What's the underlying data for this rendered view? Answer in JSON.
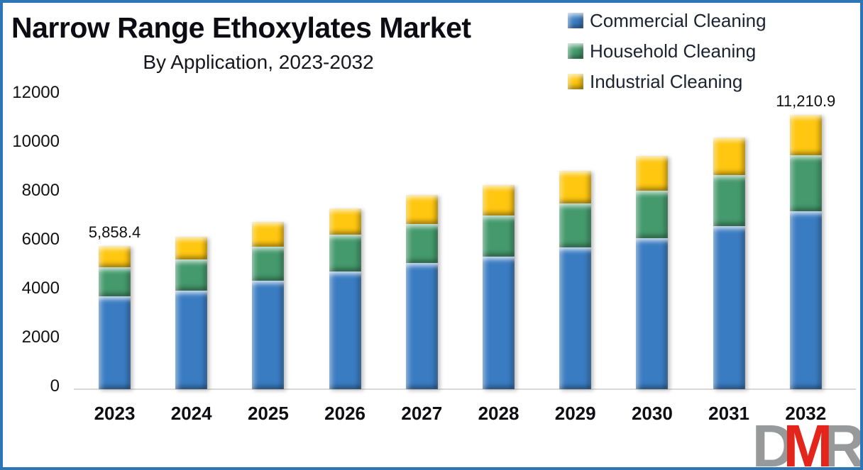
{
  "frame": {
    "border_color": "#2e75b6",
    "background": "#ffffff"
  },
  "header": {
    "title": "Narrow Range Ethoxylates Market",
    "subtitle": "By Application, 2023-2032"
  },
  "legend": {
    "position": "top-right",
    "items": [
      {
        "label": "Commercial Cleaning",
        "color": "#3a7cc2"
      },
      {
        "label": "Household Cleaning",
        "color": "#449a6c"
      },
      {
        "label": "Industrial Cleaning",
        "color": "#ffc710"
      }
    ]
  },
  "chart_data": {
    "type": "bar",
    "stacked": true,
    "title": "Narrow Range Ethoxylates Market",
    "subtitle": "By Application, 2023-2032",
    "categories": [
      "2023",
      "2024",
      "2025",
      "2026",
      "2027",
      "2028",
      "2029",
      "2030",
      "2031",
      "2032"
    ],
    "series": [
      {
        "name": "Commercial Cleaning",
        "color": "#3a7cc2",
        "values": [
          3802,
          4037,
          4446,
          4803,
          5147,
          5413,
          5789,
          6185,
          6678,
          7276
        ]
      },
      {
        "name": "Household Cleaning",
        "color": "#449a6c",
        "values": [
          1189,
          1263,
          1391,
          1502,
          1610,
          1693,
          1811,
          1935,
          2089,
          2276
        ]
      },
      {
        "name": "Industrial Cleaning",
        "color": "#ffc710",
        "values": [
          867.4,
          920,
          1013,
          1095,
          1173,
          1234,
          1320,
          1410,
          1523,
          1658.9
        ]
      }
    ],
    "totals": [
      5858.4,
      6220,
      6850,
      7400,
      7930,
      8340,
      8920,
      9530,
      10290,
      11210.9
    ],
    "data_labels": {
      "2023": "5,858.4",
      "2032": "11,210.9"
    },
    "y_ticks": [
      0,
      2000,
      4000,
      6000,
      8000,
      10000,
      12000
    ],
    "ylim": [
      0,
      12000
    ],
    "grid": false,
    "legend_position": "top-right"
  },
  "annotations": {
    "first_bar_label": "5,858.4",
    "last_bar_label": "11,210.9"
  },
  "logo": {
    "letters": [
      "D",
      "M",
      "R"
    ],
    "gray": "#97999b",
    "red": "#e4251b"
  }
}
